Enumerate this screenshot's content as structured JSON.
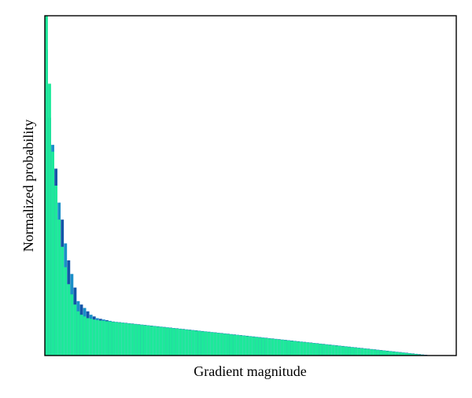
{
  "chart_data": {
    "type": "bar",
    "title": "",
    "xlabel": "Gradient magnitude",
    "ylabel": "Normalized probability",
    "xticks": [],
    "yticks": [],
    "grid": false,
    "legend": "none",
    "ylim": [
      0,
      1
    ],
    "colors": {
      "front_series": "#1de99a",
      "back_series_light": "#1a8fc8",
      "back_series_dark": "#1454a8"
    },
    "bin_count": 120,
    "series": [
      {
        "values": [
          1.0,
          0.8,
          0.6,
          0.5,
          0.4,
          0.32,
          0.26,
          0.21,
          0.18,
          0.15,
          0.13,
          0.12,
          0.115,
          0.11,
          0.108,
          0.106,
          0.104,
          0.103,
          0.102,
          0.101,
          0.1,
          0.099,
          0.098,
          0.097,
          0.096,
          0.095,
          0.094,
          0.093,
          0.092,
          0.091,
          0.09,
          0.089,
          0.088,
          0.087,
          0.086,
          0.085,
          0.084,
          0.083,
          0.082,
          0.081,
          0.08,
          0.079,
          0.078,
          0.077,
          0.076,
          0.075,
          0.074,
          0.073,
          0.072,
          0.071,
          0.07,
          0.069,
          0.068,
          0.067,
          0.066,
          0.065,
          0.064,
          0.063,
          0.062,
          0.061,
          0.06,
          0.059,
          0.058,
          0.057,
          0.056,
          0.055,
          0.054,
          0.053,
          0.052,
          0.051,
          0.05,
          0.049,
          0.048,
          0.047,
          0.046,
          0.045,
          0.044,
          0.043,
          0.042,
          0.041,
          0.04,
          0.039,
          0.038,
          0.037,
          0.036,
          0.035,
          0.034,
          0.033,
          0.032,
          0.031,
          0.03,
          0.029,
          0.028,
          0.027,
          0.026,
          0.025,
          0.024,
          0.023,
          0.022,
          0.021,
          0.02,
          0.019,
          0.018,
          0.017,
          0.016,
          0.015,
          0.014,
          0.013,
          0.012,
          0.011,
          0.01,
          0.009,
          0.008,
          0.007,
          0.006,
          0.005,
          0.004,
          0.003,
          0.002,
          0.001
        ]
      },
      {
        "values": [
          0.9,
          0.7,
          0.62,
          0.55,
          0.45,
          0.4,
          0.33,
          0.28,
          0.24,
          0.2,
          0.16,
          0.15,
          0.14,
          0.13,
          0.12,
          0.115,
          0.11,
          0.108,
          0.106,
          0.104,
          0.102,
          0.1,
          0.099,
          0.098,
          0.097,
          0.096,
          0.095,
          0.094,
          0.093,
          0.092,
          0.091,
          0.09,
          0.089,
          0.088,
          0.087,
          0.086,
          0.085,
          0.084,
          0.083,
          0.082,
          0.081,
          0.08,
          0.079,
          0.078,
          0.077,
          0.076,
          0.075,
          0.074,
          0.073,
          0.072,
          0.071,
          0.07,
          0.069,
          0.068,
          0.067,
          0.066,
          0.065,
          0.064,
          0.063,
          0.062,
          0.061,
          0.06,
          0.059,
          0.058,
          0.057,
          0.056,
          0.055,
          0.054,
          0.053,
          0.052,
          0.051,
          0.05,
          0.049,
          0.048,
          0.047,
          0.046,
          0.045,
          0.044,
          0.043,
          0.042,
          0.041,
          0.04,
          0.039,
          0.038,
          0.037,
          0.036,
          0.035,
          0.034,
          0.033,
          0.032,
          0.031,
          0.03,
          0.029,
          0.028,
          0.027,
          0.026,
          0.025,
          0.024,
          0.023,
          0.022,
          0.021,
          0.02,
          0.019,
          0.018,
          0.017,
          0.016,
          0.015,
          0.014,
          0.013,
          0.012,
          0.011,
          0.01,
          0.009,
          0.008,
          0.007,
          0.006,
          0.005,
          0.004,
          0.003,
          0.002
        ]
      }
    ]
  }
}
